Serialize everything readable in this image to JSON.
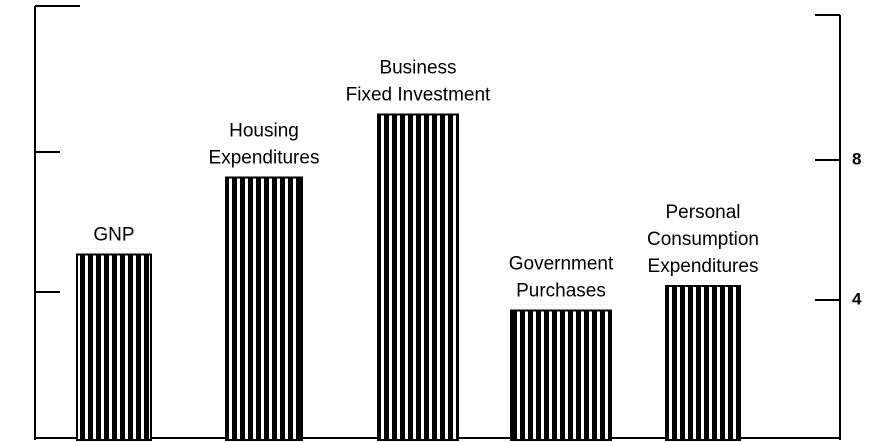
{
  "chart_data": {
    "type": "bar",
    "categories": [
      [
        "GNP"
      ],
      [
        "Housing",
        "Expenditures"
      ],
      [
        "Business",
        "Fixed Investment"
      ],
      [
        "Government",
        "Purchases"
      ],
      [
        "Personal",
        "Consumption",
        "Expenditures"
      ]
    ],
    "values": [
      5.3,
      7.5,
      9.3,
      3.7,
      4.4
    ],
    "color": "#000000",
    "ylim": [
      0,
      12.4
    ],
    "yticks": [
      4,
      8
    ]
  }
}
